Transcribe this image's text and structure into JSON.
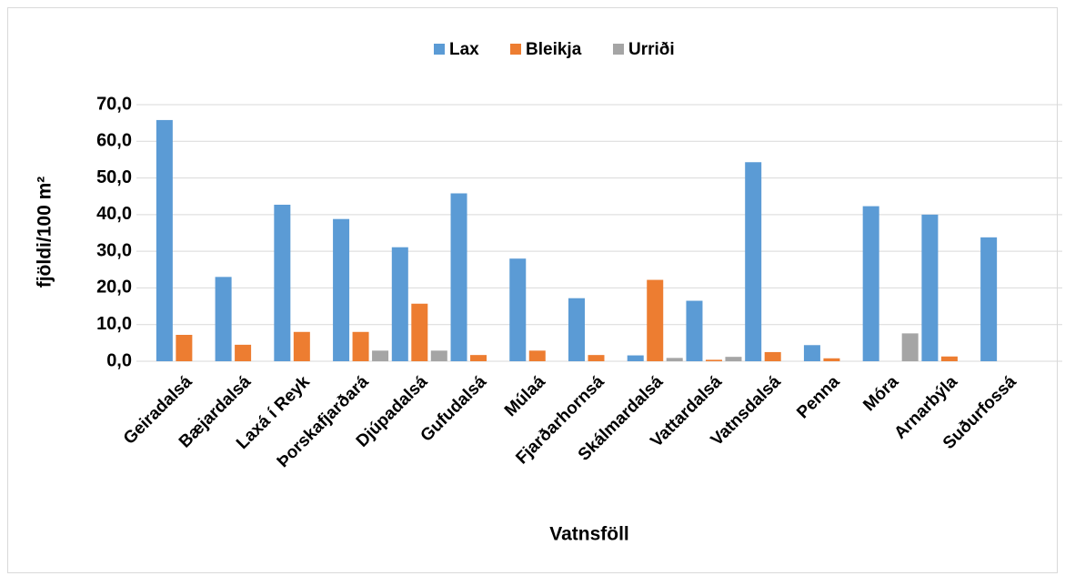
{
  "chart_data": {
    "type": "bar",
    "categories": [
      "Geiradalsá",
      "Bæjardalsá",
      "Laxá í Reyk",
      "Þorskafjarðará",
      "Djúpadalsá",
      "Gufudalsá",
      "Múlaá",
      "Fjarðarhornsá",
      "Skálmardalsá",
      "Vattardalsá",
      "Vatnsdalsá",
      "Penna",
      "Móra",
      "Arnarbýla",
      "Suðurfossá"
    ],
    "series": [
      {
        "name": "Lax",
        "color": "#5b9bd5",
        "values": [
          65.8,
          23.0,
          42.7,
          38.8,
          31.1,
          45.8,
          28.0,
          17.2,
          1.6,
          16.5,
          54.3,
          4.4,
          42.3,
          40.0,
          33.8
        ]
      },
      {
        "name": "Bleikja",
        "color": "#ed7d31",
        "values": [
          7.2,
          4.5,
          8.0,
          8.0,
          15.7,
          1.7,
          2.9,
          1.7,
          22.2,
          0.4,
          2.5,
          0.8,
          0,
          1.3,
          0
        ]
      },
      {
        "name": "Urriði",
        "color": "#a5a5a5",
        "values": [
          0,
          0,
          0,
          2.9,
          2.9,
          0,
          0,
          0,
          0.9,
          1.2,
          0,
          0,
          7.6,
          0,
          0
        ]
      }
    ],
    "ylim": [
      0,
      70
    ],
    "yticks": [
      {
        "value": 0,
        "label": "0,0"
      },
      {
        "value": 10,
        "label": "10,0"
      },
      {
        "value": 20,
        "label": "20,0"
      },
      {
        "value": 30,
        "label": "30,0"
      },
      {
        "value": 40,
        "label": "40,0"
      },
      {
        "value": 50,
        "label": "50,0"
      },
      {
        "value": 60,
        "label": "60,0"
      },
      {
        "value": 70,
        "label": "70,0"
      }
    ],
    "y_label": "fjöldi/100 m²",
    "x_label": "Vatnsföll",
    "grid": true,
    "legend": "top"
  }
}
